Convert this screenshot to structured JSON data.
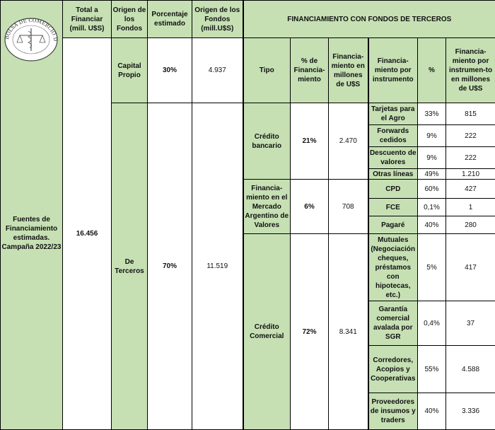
{
  "logo_text": "BOLSA DE COMERCIO DE ROSARIO",
  "headers": {
    "total": "Total a Financiar (mill. U$S)",
    "origen": "Origen de los Fondos",
    "porcentaje": "Porcentaje estimado",
    "origen_mill": "Origen de los Fondos (mill.U$S)",
    "terceros_title": "FINANCIAMIENTO CON FONDOS DE TERCEROS",
    "tipo": "Tipo",
    "pct_fin": "% de Financia-miento",
    "fin_mill": "Financia-miento en millones de U$S",
    "fin_instr": "Financia-miento por instrumento",
    "pct": "%",
    "fin_instr_mill": "Financia-miento por instrumen-to en millones de U$S"
  },
  "side_label": "Fuentes de Financiamiento estimadas. Campaña 2022/23",
  "total": "16.456",
  "origins": [
    {
      "name": "Capital Propio",
      "pct": "30%",
      "amount": "4.937"
    },
    {
      "name": "De Terceros",
      "pct": "70%",
      "amount": "11.519"
    }
  ],
  "tipos": [
    {
      "name": "Crédito bancario",
      "pct": "21%",
      "amount": "2.470"
    },
    {
      "name": "Financia-miento en el Mercado Argentino de Valores",
      "pct": "6%",
      "amount": "708"
    },
    {
      "name": "Crédito Comercial",
      "pct": "72%",
      "amount": "8.341"
    }
  ],
  "instruments": [
    {
      "name": "Tarjetas para el Agro",
      "pct": "33%",
      "amount": "815"
    },
    {
      "name": "Forwards cedidos",
      "pct": "9%",
      "amount": "222"
    },
    {
      "name": "Descuento de valores",
      "pct": "9%",
      "amount": "222"
    },
    {
      "name": "Otras líneas",
      "pct": "49%",
      "amount": "1.210"
    },
    {
      "name": "CPD",
      "pct": "60%",
      "amount": "427"
    },
    {
      "name": "FCE",
      "pct": "0,1%",
      "amount": "1"
    },
    {
      "name": "Pagaré",
      "pct": "40%",
      "amount": "280"
    },
    {
      "name": "Mutuales (Negociación cheques, préstamos con hipotecas, etc.)",
      "pct": "5%",
      "amount": "417"
    },
    {
      "name": "Garantía comercial avalada por SGR",
      "pct": "0,4%",
      "amount": "37"
    },
    {
      "name": "Corredores, Acopios y Cooperativas",
      "pct": "55%",
      "amount": "4.588"
    },
    {
      "name": "Proveedores de insumos y traders",
      "pct": "40%",
      "amount": "3.336"
    }
  ],
  "colors": {
    "header_green": "#c6e0b4"
  }
}
